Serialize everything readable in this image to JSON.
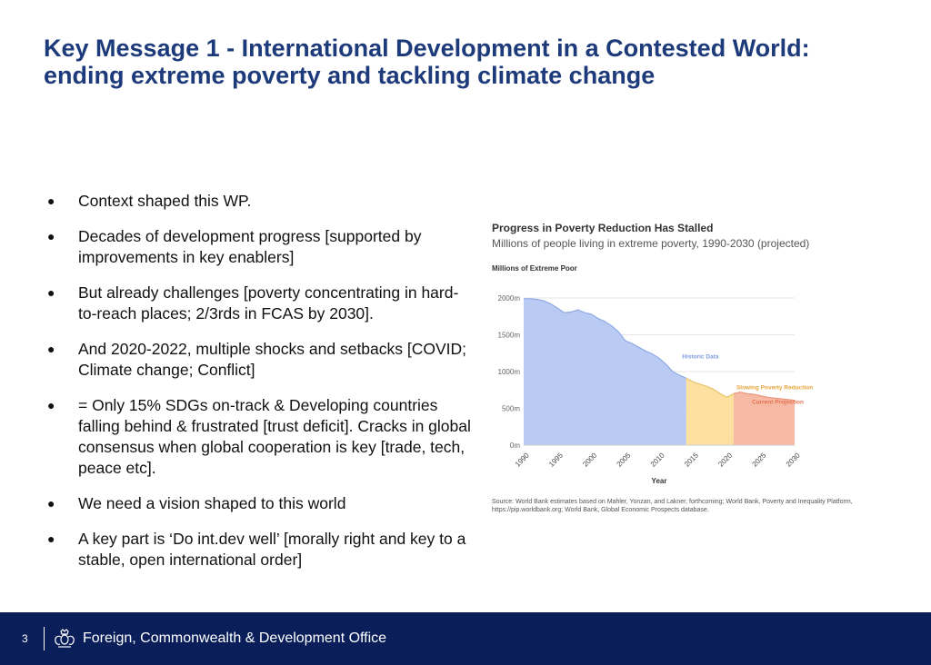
{
  "header": {
    "title_line1": "Key Message 1 - International Development in a Contested World:",
    "title_line2": "ending extreme poverty and tackling climate change",
    "color": "#1d3a7a"
  },
  "bullets": [
    "Context shaped this WP.",
    "Decades of development progress [supported by improvements in key enablers]",
    "But already challenges [poverty concentrating in hard-to-reach places; 2/3rds in FCAS by 2030].",
    "And 2020-2022, multiple shocks and setbacks [COVID; Climate change; Conflict]",
    "= Only 15% SDGs on-track & Developing countries falling behind & frustrated [trust deficit]. Cracks in global consensus when global cooperation is key [trade, tech, peace etc].",
    "We need a vision shaped to this world",
    "A key part is ‘Do int.dev well’ [morally right and key to a stable, open international order]"
  ],
  "chart_data": {
    "type": "area",
    "title": "Progress in Poverty Reduction Has Stalled",
    "subtitle": "Millions of people living in extreme poverty, 1990-2030 (projected)",
    "ylabel": "Millions of Extreme Poor",
    "xlabel": "Year",
    "ylim": [
      0,
      2000
    ],
    "xlim": [
      1990,
      2030
    ],
    "y_ticks": [
      "0m",
      "500m",
      "1000m",
      "1500m",
      "2000m"
    ],
    "x_ticks": [
      "1990",
      "1995",
      "2000",
      "2005",
      "2010",
      "2015",
      "2020",
      "2025",
      "2030"
    ],
    "grid": true,
    "series": [
      {
        "name": "Historic Data",
        "color": "#b9cbf2",
        "x": [
          1990,
          1991,
          1992,
          1993,
          1994,
          1995,
          1996,
          1997,
          1998,
          1999,
          2000,
          2001,
          2002,
          2003,
          2004,
          2005,
          2006,
          2007,
          2008,
          2009,
          2010,
          2011,
          2012,
          2013,
          2014
        ],
        "values": [
          1990,
          1990,
          1980,
          1960,
          1920,
          1860,
          1800,
          1810,
          1840,
          1800,
          1780,
          1720,
          1680,
          1620,
          1540,
          1420,
          1380,
          1330,
          1280,
          1240,
          1180,
          1100,
          1000,
          950,
          910
        ]
      },
      {
        "name": "Slowing Poverty Reduction",
        "color": "#fbe0a0",
        "x": [
          2014,
          2015,
          2016,
          2017,
          2018,
          2019,
          2020,
          2021,
          2022
        ],
        "values": [
          910,
          860,
          830,
          800,
          760,
          700,
          650,
          700,
          720
        ]
      },
      {
        "name": "Current Projection",
        "color": "#f6b9a3",
        "x": [
          2021,
          2022,
          2023,
          2024,
          2025,
          2026,
          2027,
          2028,
          2029,
          2030
        ],
        "values": [
          700,
          720,
          700,
          690,
          670,
          650,
          640,
          630,
          620,
          610
        ]
      }
    ],
    "source": "Source: World Bank estimates based on Mahler, Yonzan, and Lakner, forthcoming; World Bank, Poverty and Inequality Platform, https://pip.worldbank.org; World Bank, Global Economic Prospects database."
  },
  "footer": {
    "page_number": "3",
    "organisation": "Foreign, Commonwealth & Development Office",
    "background": "#0a1e5a"
  }
}
